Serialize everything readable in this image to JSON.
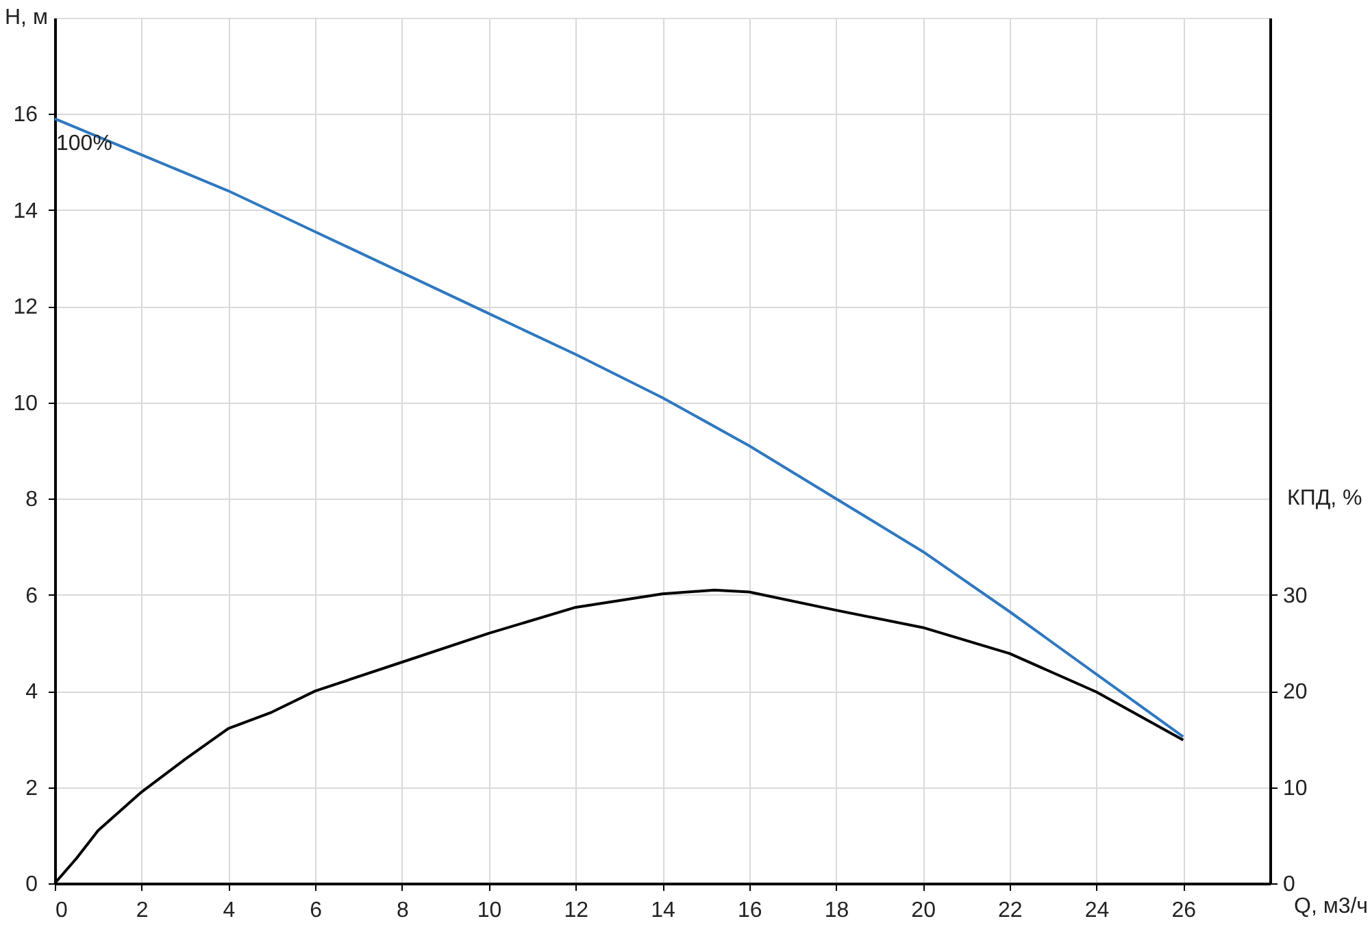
{
  "chart_data": {
    "type": "line",
    "xlabel": "Q, м3/ч",
    "ylabel": "H, м",
    "y2label": "КПД, %",
    "xlim": [
      0,
      28
    ],
    "xticks": [
      0,
      2,
      4,
      6,
      8,
      10,
      12,
      14,
      16,
      18,
      20,
      22,
      24,
      26
    ],
    "ylim": [
      0,
      18
    ],
    "yticks": [
      0,
      2,
      4,
      6,
      8,
      10,
      12,
      14,
      16
    ],
    "y2lim": [
      0,
      90
    ],
    "y2ticks": [
      0,
      10,
      20,
      30
    ],
    "grid": true,
    "marker": "none",
    "line_style": "solid",
    "series": [
      {
        "color": "#2f78c0",
        "axis": "y",
        "x": [
          0,
          2,
          4,
          6,
          8,
          10,
          12,
          14,
          16,
          18,
          20,
          22,
          24,
          26
        ],
        "values": [
          15.9,
          15.15,
          14.4,
          13.55,
          12.7,
          11.85,
          11.0,
          10.1,
          9.1,
          8.0,
          6.9,
          5.65,
          4.35,
          3.05
        ]
      },
      {
        "color": "#000000",
        "axis": "y2",
        "x": [
          0,
          0.5,
          1,
          2,
          3,
          4,
          5,
          6,
          8,
          10,
          12,
          14,
          15.2,
          16,
          18,
          20,
          22,
          24,
          26
        ],
        "values": [
          0,
          2.6,
          5.5,
          9.5,
          12.9,
          16.1,
          17.8,
          20.0,
          23,
          26,
          28.7,
          30.1,
          30.5,
          30.3,
          28.4,
          26.6,
          23.9,
          19.9,
          14.9
        ]
      }
    ],
    "annotations": [
      {
        "text": "100%",
        "x": 0,
        "y": 15.9
      }
    ]
  }
}
